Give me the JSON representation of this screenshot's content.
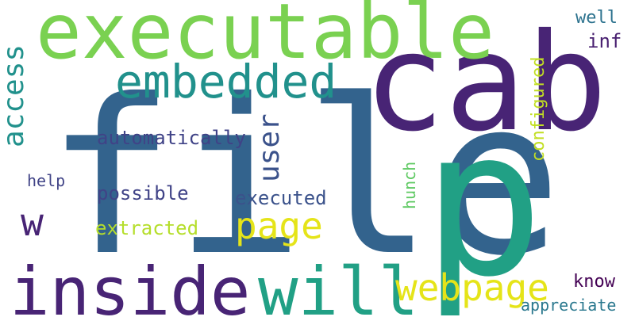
{
  "words": {
    "file": "file",
    "cab": "cab",
    "p": "p",
    "executable": "executable",
    "embedded": "embedded",
    "inside": "inside",
    "will": "will",
    "webpage": "webpage",
    "page": "page",
    "access": "access",
    "user": "user",
    "automatically": "automatically",
    "possible": "possible",
    "executed": "executed",
    "extracted": "extracted",
    "help": "help",
    "w": "w",
    "configured": "configured",
    "hunch": "hunch",
    "well": "well",
    "inf": "inf",
    "know": "know",
    "appreciate": "appreciate"
  },
  "colors": {
    "background": "#ffffff",
    "file": "#33638d",
    "cab": "#482475",
    "p": "#21a085",
    "executable": "#7ad151",
    "embedded": "#21918c",
    "inside": "#482475",
    "will": "#21a085",
    "webpage": "#e5e419",
    "page": "#e5e419",
    "access": "#21918c",
    "user": "#3b528b",
    "automatically": "#404387",
    "possible": "#404387",
    "executed": "#3b528b",
    "extracted": "#b5de2b",
    "help": "#414487",
    "w": "#482475",
    "configured": "#c2df23",
    "hunch": "#5ec962",
    "well": "#2c728e",
    "inf": "#481f70",
    "know": "#440154",
    "appreciate": "#2a788e"
  }
}
